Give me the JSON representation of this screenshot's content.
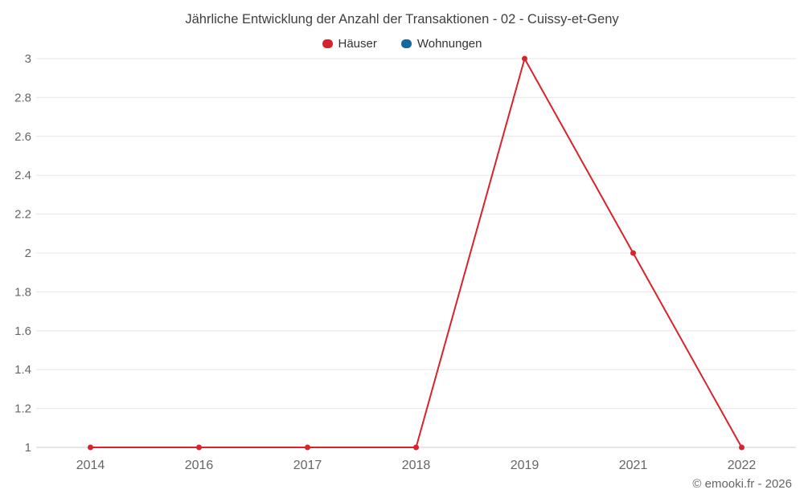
{
  "chart_data": {
    "type": "line",
    "title": "Jährliche Entwicklung der Anzahl der Transaktionen - 02 - Cuissy-et-Geny",
    "categories": [
      "2014",
      "2016",
      "2017",
      "2018",
      "2019",
      "2021",
      "2022"
    ],
    "series": [
      {
        "name": "Häuser",
        "color": "#d7232b",
        "values": [
          1,
          1,
          1,
          1,
          3,
          2,
          1
        ]
      },
      {
        "name": "Wohnungen",
        "color": "#16699e",
        "values": []
      }
    ],
    "xlabel": "",
    "ylabel": "",
    "ylim": [
      1,
      3
    ],
    "ytick_step": 0.2,
    "grid": "horizontal",
    "legend_position": "top",
    "colors": {
      "gridline": "#e6e6e6",
      "axis_line": "#cccccc",
      "tick_text": "#666666"
    }
  },
  "footer": {
    "credit": "© emooki.fr - 2026"
  }
}
